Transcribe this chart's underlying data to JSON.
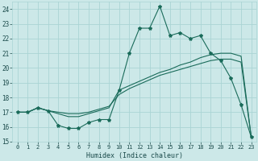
{
  "title": "",
  "xlabel": "Humidex (Indice chaleur)",
  "ylabel": "",
  "bg_color": "#cce8e8",
  "grid_color": "#aad4d4",
  "line_color": "#1a6b5a",
  "xlim": [
    -0.5,
    23.5
  ],
  "ylim": [
    15,
    24.5
  ],
  "xticks": [
    0,
    1,
    2,
    3,
    4,
    5,
    6,
    7,
    8,
    9,
    10,
    11,
    12,
    13,
    14,
    15,
    16,
    17,
    18,
    19,
    20,
    21,
    22,
    23
  ],
  "yticks": [
    15,
    16,
    17,
    18,
    19,
    20,
    21,
    22,
    23,
    24
  ],
  "series1_x": [
    0,
    1,
    2,
    3,
    4,
    5,
    6,
    7,
    8,
    9,
    10,
    11,
    12,
    13,
    14,
    15,
    16,
    17,
    18,
    19,
    20,
    21,
    22,
    23
  ],
  "series1_y": [
    17.0,
    17.0,
    17.3,
    17.1,
    16.1,
    15.9,
    15.9,
    16.3,
    16.5,
    16.5,
    18.5,
    21.0,
    22.7,
    22.7,
    24.2,
    22.2,
    22.4,
    22.0,
    22.2,
    21.0,
    20.5,
    19.3,
    17.5,
    15.3
  ],
  "series2_x": [
    0,
    1,
    2,
    3,
    4,
    5,
    6,
    7,
    8,
    9,
    10,
    11,
    12,
    13,
    14,
    15,
    16,
    17,
    18,
    19,
    20,
    21,
    22,
    23
  ],
  "series2_y": [
    17.0,
    17.0,
    17.3,
    17.1,
    16.9,
    16.7,
    16.7,
    16.9,
    17.1,
    17.3,
    18.5,
    18.8,
    19.1,
    19.4,
    19.7,
    19.9,
    20.2,
    20.4,
    20.7,
    20.9,
    21.0,
    21.0,
    20.8,
    15.3
  ],
  "series3_x": [
    0,
    1,
    2,
    3,
    4,
    5,
    6,
    7,
    8,
    9,
    10,
    11,
    12,
    13,
    14,
    15,
    16,
    17,
    18,
    19,
    20,
    21,
    22,
    23
  ],
  "series3_y": [
    17.0,
    17.0,
    17.3,
    17.1,
    17.0,
    16.9,
    16.9,
    17.0,
    17.2,
    17.4,
    18.2,
    18.6,
    18.9,
    19.2,
    19.5,
    19.7,
    19.9,
    20.1,
    20.3,
    20.5,
    20.6,
    20.6,
    20.4,
    15.3
  ],
  "tick_fontsize": 5,
  "xlabel_fontsize": 6,
  "marker_size": 3
}
